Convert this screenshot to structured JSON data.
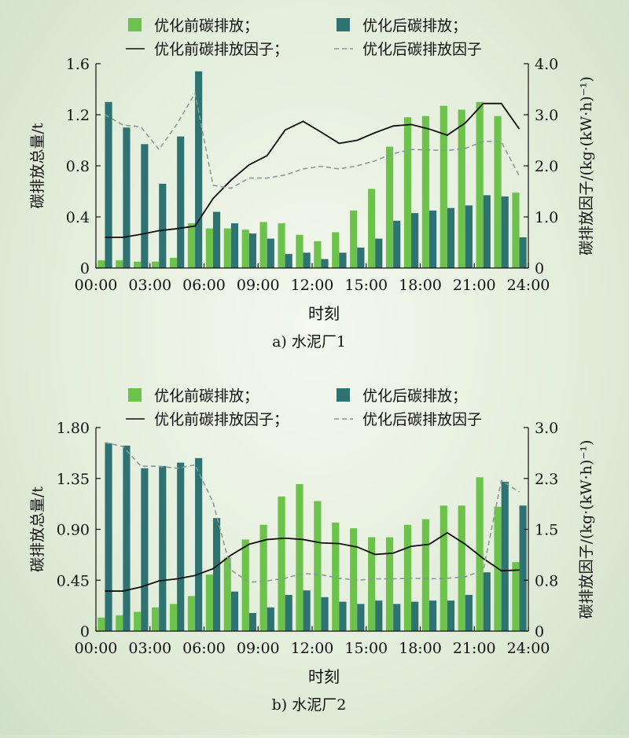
{
  "colors": {
    "before_bar": "#6cc24a",
    "after_bar": "#2e7372",
    "before_line": "#111111",
    "after_line": "#8a9a96"
  },
  "chart_data": [
    {
      "type": "bar",
      "caption": "a) 水泥厂1",
      "xlabel": "时刻",
      "ylabel": "碳排放总量/t",
      "y2label": "碳排放因子/(kg·(kW·h)⁻¹)",
      "x_ticks": [
        "00:00",
        "03:00",
        "06:00",
        "09:00",
        "12:00",
        "15:00",
        "18:00",
        "21:00",
        "24:00"
      ],
      "y_ticks": [
        "0",
        "0.4",
        "0.8",
        "1.2",
        "1.6"
      ],
      "y2_ticks": [
        "0",
        "1.0",
        "2.0",
        "3.0",
        "4.0"
      ],
      "ylim": [
        0,
        1.6
      ],
      "y2lim": [
        0,
        4.0
      ],
      "legend": [
        "优化前碳排放；",
        "优化后碳排放；",
        "优化前碳排放因子；",
        "优化后碳排放因子"
      ],
      "series": [
        {
          "name": "优化前碳排放",
          "type": "bar",
          "axis": "left",
          "values": [
            0.06,
            0.06,
            0.05,
            0.05,
            0.08,
            0.35,
            0.31,
            0.31,
            0.3,
            0.36,
            0.35,
            0.26,
            0.21,
            0.28,
            0.45,
            0.62,
            0.95,
            1.18,
            1.19,
            1.27,
            1.24,
            1.3,
            1.19,
            0.59
          ]
        },
        {
          "name": "优化后碳排放",
          "type": "bar",
          "axis": "left",
          "values": [
            1.3,
            1.1,
            0.97,
            0.66,
            1.03,
            1.54,
            0.44,
            0.35,
            0.27,
            0.23,
            0.11,
            0.12,
            0.07,
            0.12,
            0.16,
            0.23,
            0.37,
            0.43,
            0.45,
            0.47,
            0.49,
            0.57,
            0.56,
            0.24
          ]
        },
        {
          "name": "优化前碳排放因子",
          "type": "line",
          "axis": "right",
          "values": [
            0.6,
            0.6,
            0.66,
            0.73,
            0.77,
            0.82,
            1.36,
            1.72,
            2.02,
            2.2,
            2.7,
            2.87,
            2.66,
            2.44,
            2.5,
            2.65,
            2.78,
            2.81,
            2.72,
            2.6,
            2.84,
            3.22,
            3.22,
            2.72
          ]
        },
        {
          "name": "优化后碳排放因子",
          "type": "line",
          "axis": "right",
          "values": [
            3.0,
            2.8,
            2.76,
            2.32,
            2.82,
            3.42,
            1.62,
            1.56,
            1.76,
            1.76,
            1.82,
            1.94,
            1.99,
            1.94,
            2.0,
            2.1,
            2.24,
            2.32,
            2.31,
            2.3,
            2.34,
            2.48,
            2.47,
            1.8
          ]
        }
      ]
    },
    {
      "type": "bar",
      "caption": "b) 水泥厂2",
      "xlabel": "时刻",
      "ylabel": "碳排放总量/t",
      "y2label": "碳排放因子/(kg·(kW·h)⁻¹)",
      "x_ticks": [
        "00:00",
        "03:00",
        "06:00",
        "09:00",
        "12:00",
        "15:00",
        "18:00",
        "21:00",
        "24:00"
      ],
      "y_ticks": [
        "0",
        "0.45",
        "0.90",
        "1.35",
        "1.80"
      ],
      "y2_ticks": [
        "0",
        "0.8",
        "1.5",
        "2.3",
        "3.0"
      ],
      "ylim": [
        0,
        1.8
      ],
      "y2lim": [
        0,
        3.0
      ],
      "legend": [
        "优化前碳排放；",
        "优化后碳排放；",
        "优化前碳排放因子；",
        "优化后碳排放因子"
      ],
      "series": [
        {
          "name": "优化前碳排放",
          "type": "bar",
          "axis": "left",
          "values": [
            0.12,
            0.14,
            0.17,
            0.21,
            0.24,
            0.31,
            0.5,
            0.65,
            0.81,
            0.94,
            1.19,
            1.3,
            1.15,
            0.96,
            0.91,
            0.83,
            0.83,
            0.94,
            0.99,
            1.11,
            1.11,
            1.36,
            1.1,
            0.61
          ]
        },
        {
          "name": "优化后碳排放",
          "type": "bar",
          "axis": "left",
          "values": [
            1.66,
            1.64,
            1.44,
            1.46,
            1.49,
            1.53,
            1.0,
            0.35,
            0.16,
            0.21,
            0.32,
            0.36,
            0.3,
            0.26,
            0.24,
            0.27,
            0.24,
            0.26,
            0.27,
            0.27,
            0.32,
            0.52,
            1.32,
            1.11
          ]
        },
        {
          "name": "优化前碳排放因子",
          "type": "line",
          "axis": "right",
          "values": [
            0.59,
            0.59,
            0.65,
            0.74,
            0.77,
            0.82,
            0.92,
            1.12,
            1.28,
            1.35,
            1.37,
            1.35,
            1.3,
            1.29,
            1.24,
            1.13,
            1.15,
            1.25,
            1.28,
            1.45,
            1.28,
            1.07,
            0.89,
            0.9
          ]
        },
        {
          "name": "优化后碳排放因子",
          "type": "line",
          "axis": "right",
          "values": [
            2.78,
            2.72,
            2.43,
            2.43,
            2.4,
            2.45,
            1.9,
            0.9,
            0.72,
            0.74,
            0.78,
            0.85,
            0.83,
            0.78,
            0.75,
            0.77,
            0.77,
            0.78,
            0.77,
            0.78,
            0.8,
            0.9,
            2.22,
            2.05
          ]
        }
      ]
    }
  ]
}
